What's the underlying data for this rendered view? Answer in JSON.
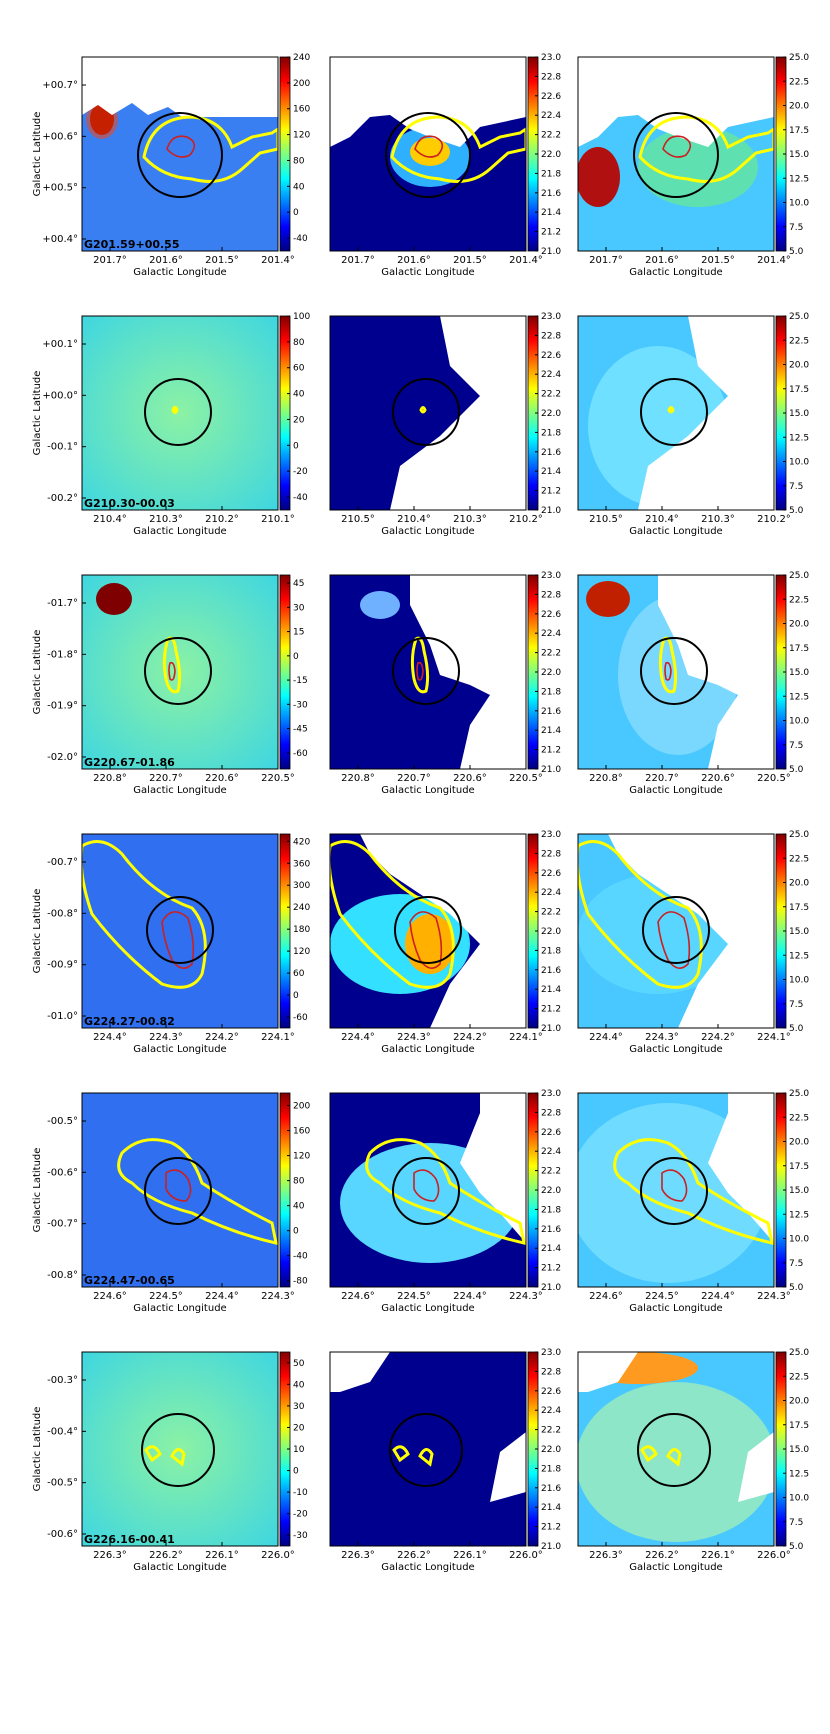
{
  "figure": {
    "axis_labels": {
      "x": "Galactic Longitude",
      "y": "Galactic Latitude"
    },
    "colormap": [
      "#00007f",
      "#0000ff",
      "#007fff",
      "#00ffff",
      "#7fff7f",
      "#ffff00",
      "#ff7f00",
      "#ff0000",
      "#7f0000"
    ],
    "contour_colors": {
      "outer": "#ffff00",
      "inner": "#cc2020",
      "circle": "#000000"
    }
  },
  "chart_data": [
    {
      "type": "heatmap",
      "source": "G201.59+00.55",
      "xlabel": "Galactic Longitude",
      "ylabel": "Galactic Latitude",
      "lon_ticks": [
        "201.7°",
        "201.6°",
        "201.5°",
        "201.4°"
      ],
      "lon_ticks_mid": [
        "201.7°",
        "201.6°",
        "201.5°",
        "201.4°"
      ],
      "lat_ticks": [
        "+00.7°",
        "+00.6°",
        "+00.5°",
        "+00.4°"
      ],
      "panels": [
        {
          "colorbar_ticks": [
            "240",
            "200",
            "160",
            "120",
            "80",
            "40",
            "0",
            "-40"
          ],
          "colorbar_range": [
            -60,
            240
          ]
        },
        {
          "colorbar_ticks": [
            "23.0",
            "22.8",
            "22.6",
            "22.4",
            "22.2",
            "22.0",
            "21.8",
            "21.6",
            "21.4",
            "21.2",
            "21.0"
          ],
          "colorbar_range": [
            21.0,
            23.0
          ]
        },
        {
          "colorbar_ticks": [
            "25.0",
            "22.5",
            "20.0",
            "17.5",
            "15.0",
            "12.5",
            "10.0",
            "7.5",
            "5.0"
          ],
          "colorbar_range": [
            5.0,
            25.0
          ]
        }
      ]
    },
    {
      "type": "heatmap",
      "source": "G210.30-00.03",
      "xlabel": "Galactic Longitude",
      "ylabel": "Galactic Latitude",
      "lon_ticks": [
        "210.4°",
        "210.3°",
        "210.2°",
        "210.1°"
      ],
      "lon_ticks_mid": [
        "210.5°",
        "210.4°",
        "210.3°",
        "210.2°"
      ],
      "lat_ticks": [
        "+00.1°",
        "+00.0°",
        "-00.1°",
        "-00.2°"
      ],
      "panels": [
        {
          "colorbar_ticks": [
            "100",
            "80",
            "60",
            "40",
            "20",
            "0",
            "-20",
            "-40"
          ],
          "colorbar_range": [
            -50,
            100
          ]
        },
        {
          "colorbar_ticks": [
            "23.0",
            "22.8",
            "22.6",
            "22.4",
            "22.2",
            "22.0",
            "21.8",
            "21.6",
            "21.4",
            "21.2",
            "21.0"
          ],
          "colorbar_range": [
            21.0,
            23.0
          ]
        },
        {
          "colorbar_ticks": [
            "25.0",
            "22.5",
            "20.0",
            "17.5",
            "15.0",
            "12.5",
            "10.0",
            "7.5",
            "5.0"
          ],
          "colorbar_range": [
            5.0,
            25.0
          ]
        }
      ]
    },
    {
      "type": "heatmap",
      "source": "G220.67-01.86",
      "xlabel": "Galactic Longitude",
      "ylabel": "Galactic Latitude",
      "lon_ticks": [
        "220.8°",
        "220.7°",
        "220.6°",
        "220.5°"
      ],
      "lon_ticks_mid": [
        "220.8°",
        "220.7°",
        "220.6°",
        "220.5°"
      ],
      "lat_ticks": [
        "-01.7°",
        "-01.8°",
        "-01.9°",
        "-02.0°"
      ],
      "panels": [
        {
          "colorbar_ticks": [
            "45",
            "30",
            "15",
            "0",
            "-15",
            "-30",
            "-45",
            "-60"
          ],
          "colorbar_range": [
            -70,
            50
          ]
        },
        {
          "colorbar_ticks": [
            "23.0",
            "22.8",
            "22.6",
            "22.4",
            "22.2",
            "22.0",
            "21.8",
            "21.6",
            "21.4",
            "21.2",
            "21.0"
          ],
          "colorbar_range": [
            21.0,
            23.0
          ]
        },
        {
          "colorbar_ticks": [
            "25.0",
            "22.5",
            "20.0",
            "17.5",
            "15.0",
            "12.5",
            "10.0",
            "7.5",
            "5.0"
          ],
          "colorbar_range": [
            5.0,
            25.0
          ]
        }
      ]
    },
    {
      "type": "heatmap",
      "source": "G224.27-00.82",
      "xlabel": "Galactic Longitude",
      "ylabel": "Galactic Latitude",
      "lon_ticks": [
        "224.4°",
        "224.3°",
        "224.2°",
        "224.1°"
      ],
      "lon_ticks_mid": [
        "224.4°",
        "224.3°",
        "224.2°",
        "224.1°"
      ],
      "lat_ticks": [
        "-00.7°",
        "-00.8°",
        "-00.9°",
        "-01.0°"
      ],
      "panels": [
        {
          "colorbar_ticks": [
            "420",
            "360",
            "300",
            "240",
            "180",
            "120",
            "60",
            "0",
            "-60"
          ],
          "colorbar_range": [
            -90,
            440
          ]
        },
        {
          "colorbar_ticks": [
            "23.0",
            "22.8",
            "22.6",
            "22.4",
            "22.2",
            "22.0",
            "21.8",
            "21.6",
            "21.4",
            "21.2",
            "21.0"
          ],
          "colorbar_range": [
            21.0,
            23.0
          ]
        },
        {
          "colorbar_ticks": [
            "25.0",
            "22.5",
            "20.0",
            "17.5",
            "15.0",
            "12.5",
            "10.0",
            "7.5",
            "5.0"
          ],
          "colorbar_range": [
            5.0,
            25.0
          ]
        }
      ]
    },
    {
      "type": "heatmap",
      "source": "G224.47-00.65",
      "xlabel": "Galactic Longitude",
      "ylabel": "Galactic Latitude",
      "lon_ticks": [
        "224.6°",
        "224.5°",
        "224.4°",
        "224.3°"
      ],
      "lon_ticks_mid": [
        "224.6°",
        "224.5°",
        "224.4°",
        "224.3°"
      ],
      "lat_ticks": [
        "-00.5°",
        "-00.6°",
        "-00.7°",
        "-00.8°"
      ],
      "panels": [
        {
          "colorbar_ticks": [
            "200",
            "160",
            "120",
            "80",
            "40",
            "0",
            "-40",
            "-80"
          ],
          "colorbar_range": [
            -90,
            220
          ]
        },
        {
          "colorbar_ticks": [
            "23.0",
            "22.8",
            "22.6",
            "22.4",
            "22.2",
            "22.0",
            "21.8",
            "21.6",
            "21.4",
            "21.2",
            "21.0"
          ],
          "colorbar_range": [
            21.0,
            23.0
          ]
        },
        {
          "colorbar_ticks": [
            "25.0",
            "22.5",
            "20.0",
            "17.5",
            "15.0",
            "12.5",
            "10.0",
            "7.5",
            "5.0"
          ],
          "colorbar_range": [
            5.0,
            25.0
          ]
        }
      ]
    },
    {
      "type": "heatmap",
      "source": "G226.16-00.41",
      "xlabel": "Galactic Longitude",
      "ylabel": "Galactic Latitude",
      "lon_ticks": [
        "226.3°",
        "226.2°",
        "226.1°",
        "226.0°"
      ],
      "lon_ticks_mid": [
        "226.3°",
        "226.2°",
        "226.1°",
        "226.0°"
      ],
      "lat_ticks": [
        "-00.3°",
        "-00.4°",
        "-00.5°",
        "-00.6°"
      ],
      "panels": [
        {
          "colorbar_ticks": [
            "50",
            "40",
            "30",
            "20",
            "10",
            "0",
            "-10",
            "-20",
            "-30"
          ],
          "colorbar_range": [
            -35,
            55
          ]
        },
        {
          "colorbar_ticks": [
            "23.0",
            "22.8",
            "22.6",
            "22.4",
            "22.2",
            "22.0",
            "21.8",
            "21.6",
            "21.4",
            "21.2",
            "21.0"
          ],
          "colorbar_range": [
            21.0,
            23.0
          ]
        },
        {
          "colorbar_ticks": [
            "25.0",
            "22.5",
            "20.0",
            "17.5",
            "15.0",
            "12.5",
            "10.0",
            "7.5",
            "5.0"
          ],
          "colorbar_range": [
            5.0,
            25.0
          ]
        }
      ]
    }
  ]
}
